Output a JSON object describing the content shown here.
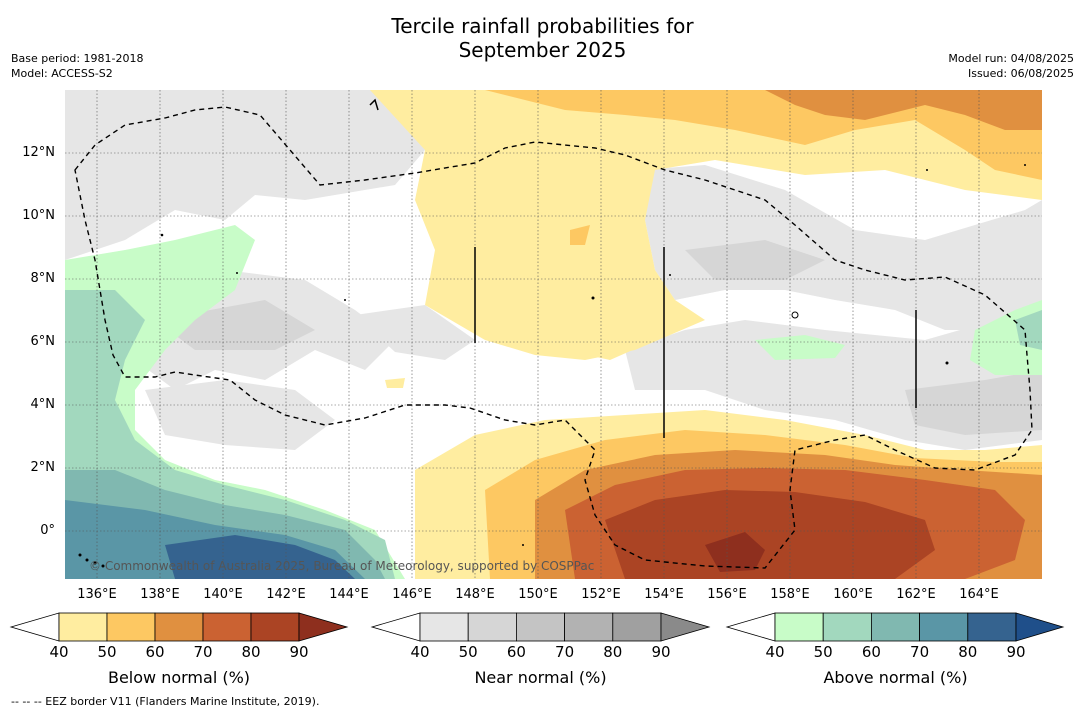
{
  "title_line1": "Tercile rainfall probabilities for",
  "title_line2": "September 2025",
  "meta_left": [
    "Base period: 1981-2018",
    "Model: ACCESS-S2"
  ],
  "meta_right": [
    "Model run: 04/08/2025",
    "Issued: 06/08/2025"
  ],
  "copyright": "© Commonwealth of Australia 2025, Bureau of Meteorology, supported by COSPPac",
  "x_ticks": [
    "136°E",
    "138°E",
    "140°E",
    "142°E",
    "144°E",
    "146°E",
    "148°E",
    "150°E",
    "152°E",
    "154°E",
    "156°E",
    "158°E",
    "160°E",
    "162°E",
    "164°E"
  ],
  "y_ticks": [
    "12°N",
    "10°N",
    "8°N",
    "6°N",
    "4°N",
    "2°N",
    "0°"
  ],
  "colorbars": [
    {
      "label": "Below normal (%)",
      "ticks": [
        "40",
        "50",
        "60",
        "70",
        "80",
        "90"
      ],
      "colors": [
        "#ffffff",
        "#ffeda0",
        "#fdc862",
        "#e09040",
        "#cb6232",
        "#ab4424",
        "#8e2f1e"
      ]
    },
    {
      "label": "Near normal (%)",
      "ticks": [
        "40",
        "50",
        "60",
        "70",
        "80",
        "90"
      ],
      "colors": [
        "#ffffff",
        "#e6e6e6",
        "#d6d6d6",
        "#c4c4c4",
        "#b2b2b2",
        "#a0a0a0",
        "#8a8a8a"
      ]
    },
    {
      "label": "Above normal (%)",
      "ticks": [
        "40",
        "50",
        "60",
        "70",
        "80",
        "90"
      ],
      "colors": [
        "#ffffff",
        "#c8fcc8",
        "#a2d8be",
        "#80b8b0",
        "#5a96a6",
        "#35638f",
        "#1f4f8a"
      ]
    }
  ],
  "footnote": "--  --  -- EEZ border V11 (Flanders Marine Institute, 2019)."
}
